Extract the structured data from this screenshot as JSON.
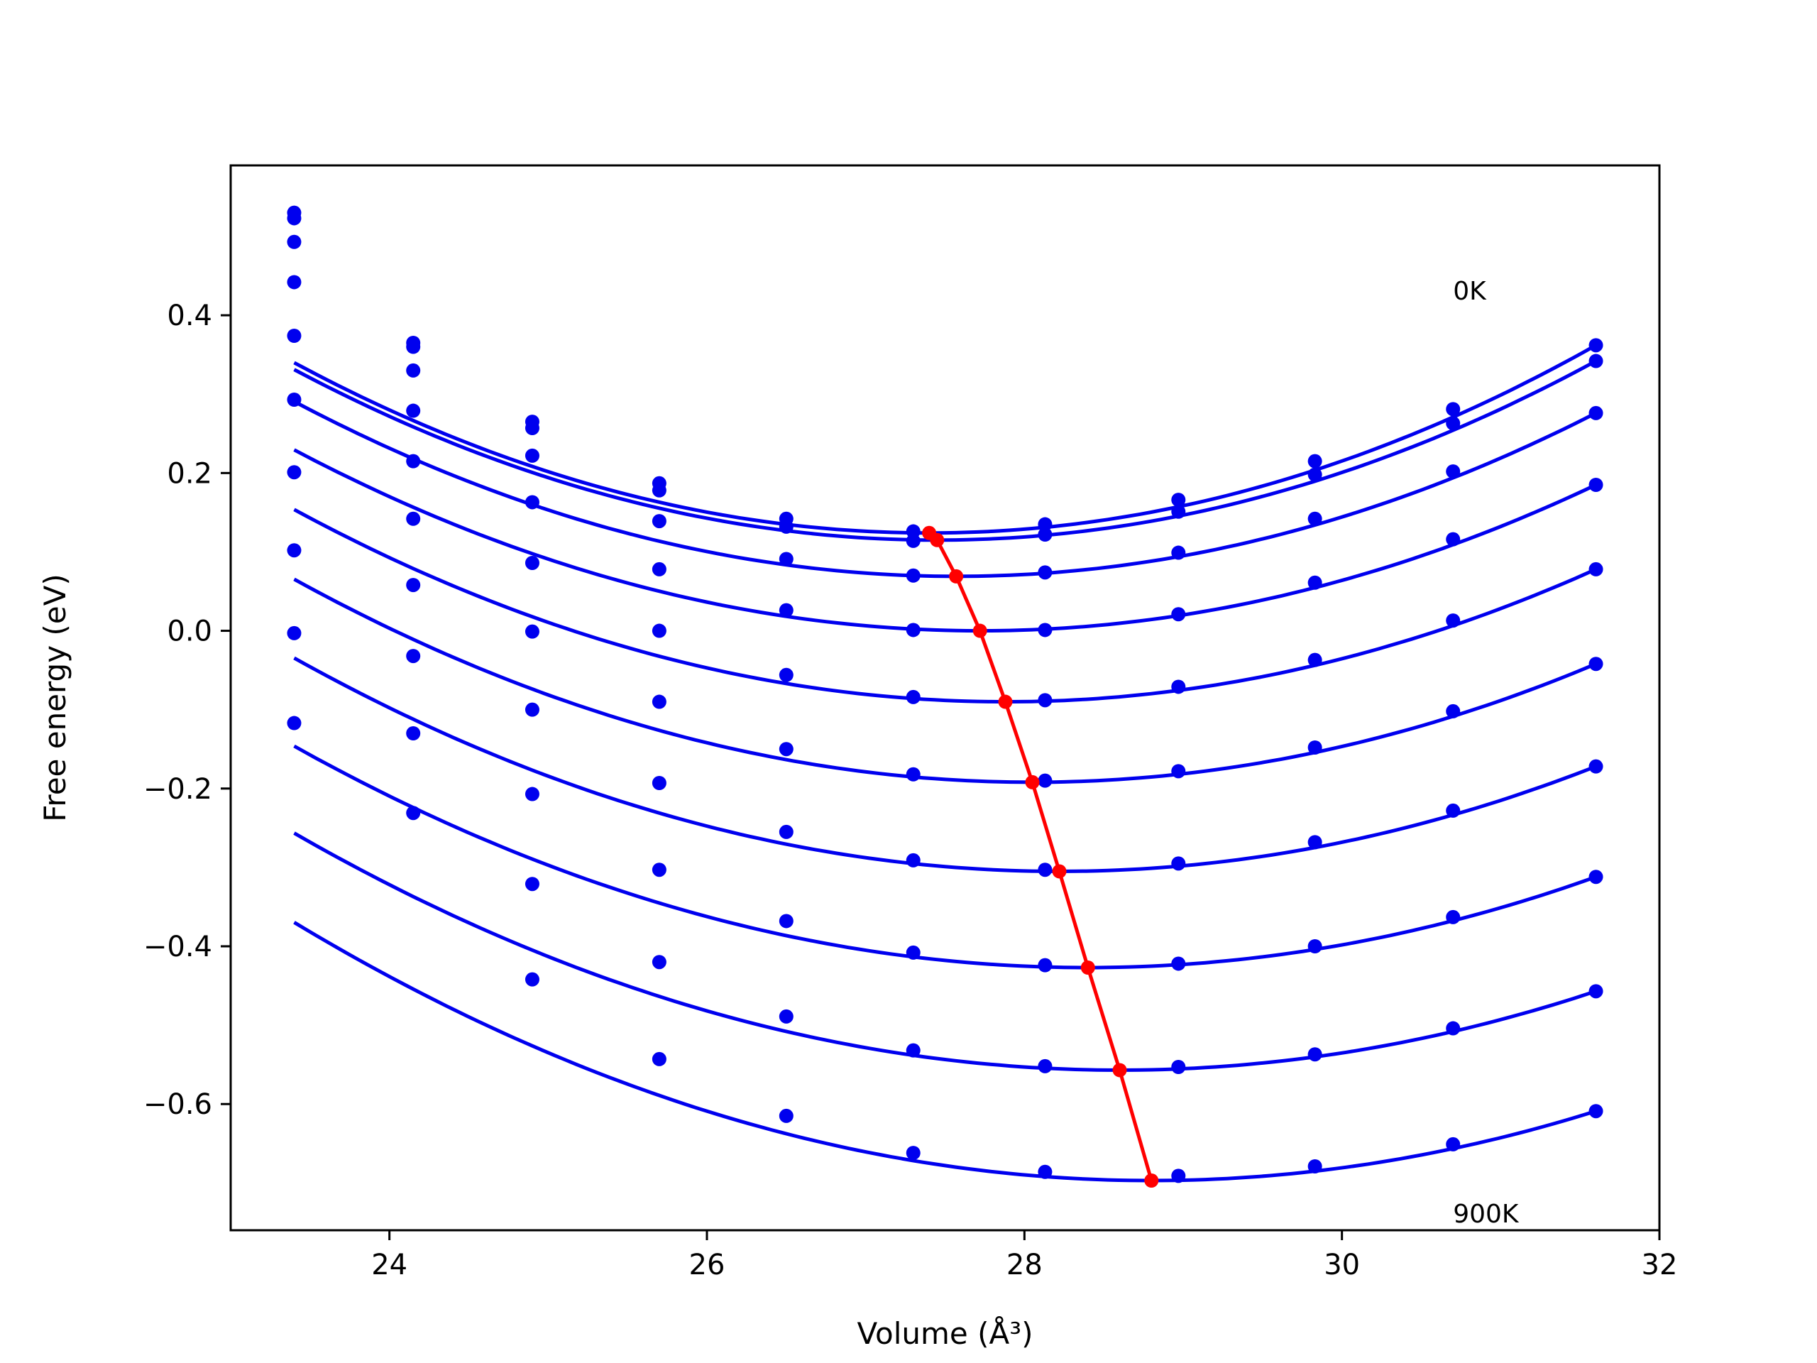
{
  "chart_data": {
    "type": "line",
    "title": "",
    "xlabel": "Volume",
    "xlabel_unit": "(Å³)",
    "ylabel": "Free energy (eV)",
    "xlim": [
      23.0,
      32.0
    ],
    "ylim": [
      -0.76,
      0.59
    ],
    "x_ticks": [
      24,
      26,
      28,
      30,
      32
    ],
    "x_tick_labels": [
      "24",
      "26",
      "28",
      "30",
      "32"
    ],
    "y_ticks": [
      -0.6,
      -0.4,
      -0.2,
      0.0,
      0.2,
      0.4
    ],
    "y_tick_labels": [
      "−0.6",
      "−0.4",
      "−0.2",
      "0.0",
      "0.2",
      "0.4"
    ],
    "grid": false,
    "annotations": [
      {
        "text": "0K",
        "x": 30.7,
        "y": 0.42
      },
      {
        "text": "900K",
        "x": 30.7,
        "y": -0.75
      }
    ],
    "colors": {
      "curve": "#0000ee",
      "minimum_line": "#ff0000",
      "axes": "#000000"
    },
    "x": [
      23.4,
      24.15,
      24.9,
      25.7,
      26.5,
      27.3,
      28.13,
      28.97,
      29.83,
      30.7,
      31.6
    ],
    "series": [
      {
        "values": [
          0.53,
          0.365,
          0.265,
          0.187,
          0.142,
          0.126,
          0.135,
          0.166,
          0.215,
          0.281,
          0.362
        ],
        "min": {
          "x": 27.4,
          "y": 0.124
        }
      },
      {
        "values": [
          0.523,
          0.36,
          0.257,
          0.178,
          0.132,
          0.114,
          0.122,
          0.151,
          0.198,
          0.263,
          0.342
        ],
        "min": {
          "x": 27.45,
          "y": 0.115
        }
      },
      {
        "values": [
          0.493,
          0.33,
          0.222,
          0.139,
          0.091,
          0.07,
          0.074,
          0.099,
          0.142,
          0.202,
          0.276
        ],
        "min": {
          "x": 27.57,
          "y": 0.069
        }
      },
      {
        "values": [
          0.442,
          0.279,
          0.163,
          0.078,
          0.026,
          0.001,
          0.001,
          0.021,
          0.061,
          0.116,
          0.185
        ],
        "min": {
          "x": 27.72,
          "y": 0.0
        }
      },
      {
        "values": [
          0.374,
          0.215,
          0.086,
          0.0,
          -0.056,
          -0.084,
          -0.088,
          -0.071,
          -0.037,
          0.013,
          0.078
        ],
        "min": {
          "x": 27.88,
          "y": -0.09
        }
      },
      {
        "values": [
          0.293,
          0.142,
          -0.001,
          -0.09,
          -0.15,
          -0.182,
          -0.19,
          -0.178,
          -0.148,
          -0.102,
          -0.042
        ],
        "min": {
          "x": 28.05,
          "y": -0.192
        }
      },
      {
        "values": [
          0.201,
          0.058,
          -0.1,
          -0.193,
          -0.255,
          -0.291,
          -0.303,
          -0.295,
          -0.268,
          -0.228,
          -0.172
        ],
        "min": {
          "x": 28.22,
          "y": -0.305
        }
      },
      {
        "values": [
          0.102,
          -0.032,
          -0.207,
          -0.303,
          -0.368,
          -0.408,
          -0.424,
          -0.422,
          -0.4,
          -0.363,
          -0.312
        ],
        "min": {
          "x": 28.4,
          "y": -0.427
        }
      },
      {
        "values": [
          -0.003,
          -0.13,
          -0.321,
          -0.42,
          -0.489,
          -0.532,
          -0.552,
          -0.553,
          -0.537,
          -0.504,
          -0.457
        ],
        "min": {
          "x": 28.6,
          "y": -0.557
        }
      },
      {
        "values": [
          -0.117,
          -0.231,
          -0.442,
          -0.543,
          -0.615,
          -0.662,
          -0.686,
          -0.691,
          -0.679,
          -0.651,
          -0.609
        ],
        "min": {
          "x": 28.8,
          "y": -0.697
        }
      }
    ]
  }
}
